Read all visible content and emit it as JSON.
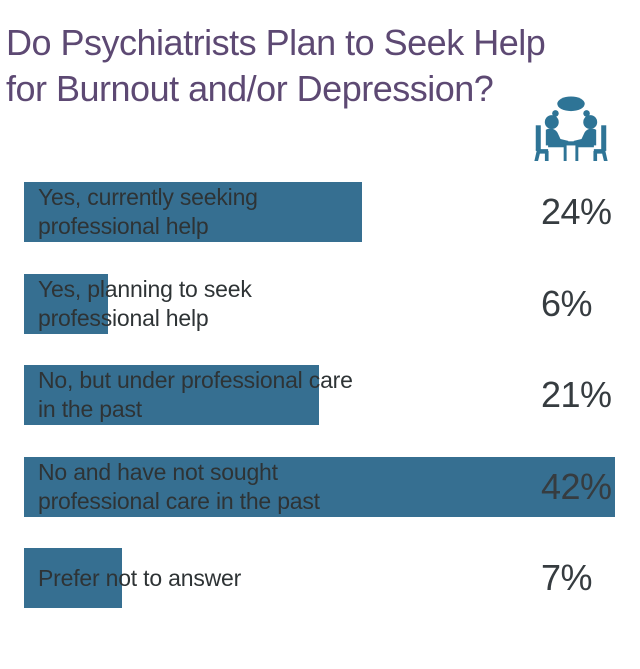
{
  "title": {
    "line1": "Do Psychiatrists Plan to Seek Help",
    "line2": "for Burnout and/or Depression?"
  },
  "icon": {
    "name": "therapy-session-icon",
    "description": "two people seated at a table with a speech bubble",
    "color": "#2e7496"
  },
  "colors": {
    "title": "#5d4973",
    "bar": "#366f91",
    "bar_label": "#2e3335",
    "value_label": "#363c40",
    "background": "#ffffff"
  },
  "chart_data": {
    "type": "bar",
    "orientation": "horizontal",
    "title": "Do Psychiatrists Plan to Seek Help for Burnout and/or Depression?",
    "categories": [
      "Yes, currently seeking professional help",
      "Yes, planning to seek professional help",
      "No, but under professional care in the past",
      "No and have not sought professional care in the past",
      "Prefer not to answer"
    ],
    "display_labels": [
      "Yes, currently seeking\nprofessional help",
      "Yes, planning to seek\nprofessional help",
      "No, but under professional care\nin the past",
      "No and have not sought\nprofessional care in the past",
      "Prefer not to answer"
    ],
    "values": [
      24,
      6,
      21,
      42,
      7
    ],
    "value_labels": [
      "24%",
      "6%",
      "21%",
      "42%",
      "7%"
    ],
    "unit": "%",
    "xlim": [
      0,
      42
    ],
    "axis": "hidden",
    "grid": false,
    "legend": "none",
    "bar_color": "#366f91",
    "value_label_position": "right-column"
  }
}
